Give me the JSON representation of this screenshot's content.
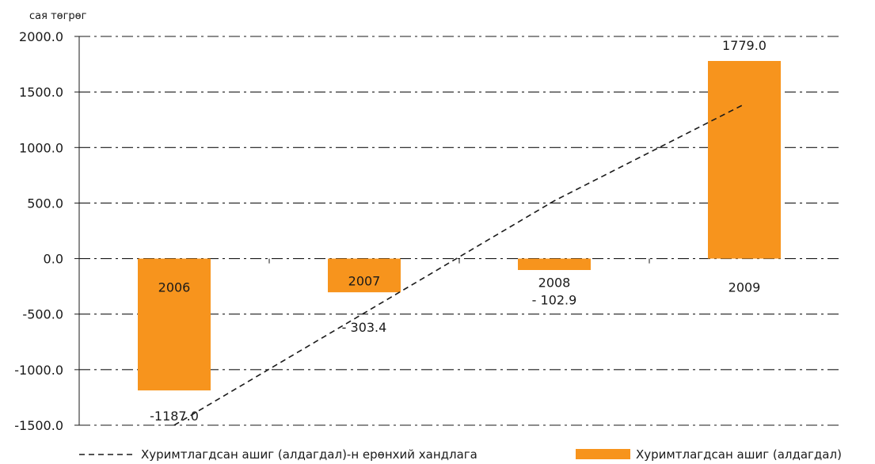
{
  "chart_data": {
    "type": "bar",
    "unit_label": "сая төгрөг",
    "categories": [
      "2006",
      "2007",
      "2008",
      "2009"
    ],
    "series": [
      {
        "name": "Хуримтлагдсан ашиг (алдагдал)",
        "color": "#f7941d",
        "values": [
          -1187.0,
          -303.4,
          -102.9,
          1779.0
        ],
        "value_labels": [
          "-1187.0",
          "- 303.4",
          "- 102.9",
          "1779.0"
        ]
      },
      {
        "name": "Хуримтлагдсан ашиг (алдагдал)-н ерөнхий хандлага",
        "type": "line",
        "style": "dashed",
        "color": "#1a1a1a",
        "values": [
          -1500,
          -490,
          520,
          1390
        ]
      }
    ],
    "yticks": [
      "2000.0",
      "1500.0",
      "1000.0",
      "500.0",
      "0.0",
      "-500.0",
      "-1000.0",
      "-1500.0"
    ],
    "ylim": [
      -1500,
      2000
    ],
    "grid": true,
    "legend_position": "bottom"
  }
}
